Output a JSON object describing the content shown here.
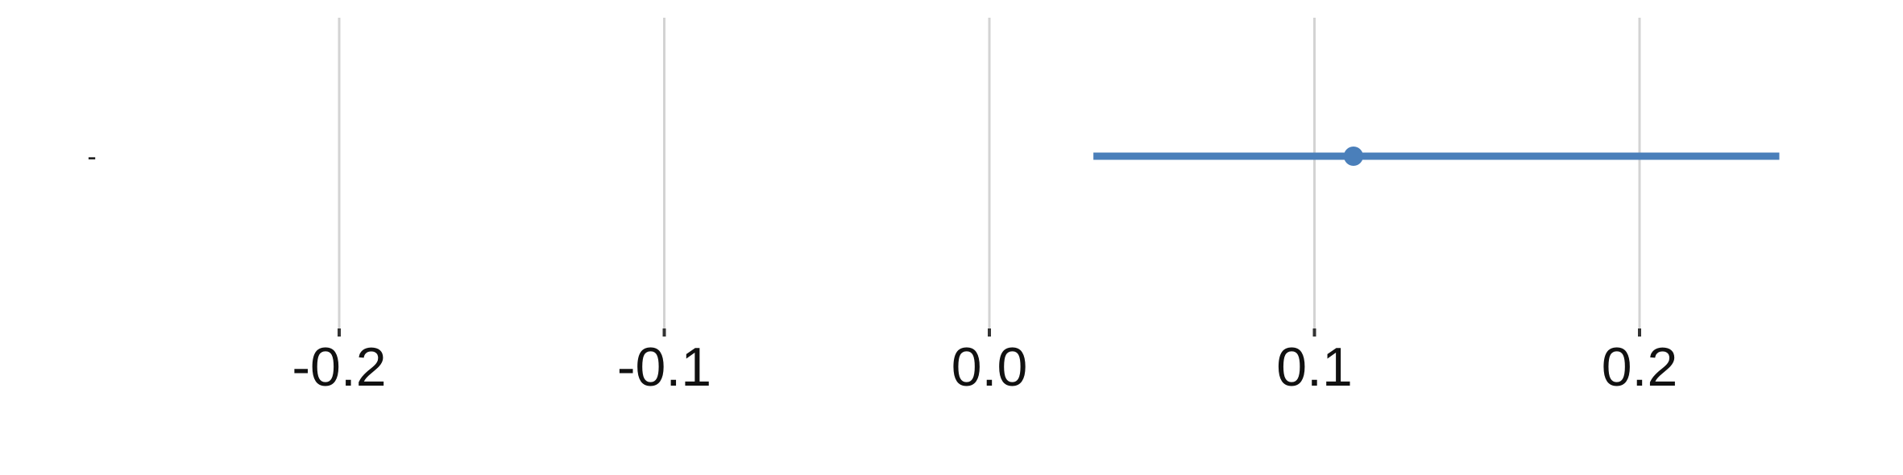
{
  "chart_data": {
    "type": "scatter",
    "title": "",
    "xlabel": "",
    "ylabel": "",
    "xlim": [
      -0.3,
      0.25
    ],
    "grid": true,
    "x_ticks": [
      -0.2,
      -0.1,
      0.0,
      0.1,
      0.2
    ],
    "x_tick_labels": [
      "-0.2",
      "-0.1",
      "0.0",
      "0.1",
      "0.2"
    ],
    "categories": [
      "-"
    ],
    "series": [
      {
        "points": [
          {
            "category": "-",
            "estimate": 0.112,
            "ci_low": 0.032,
            "ci_high": 0.243
          }
        ]
      }
    ],
    "color": "#4a7fba"
  }
}
